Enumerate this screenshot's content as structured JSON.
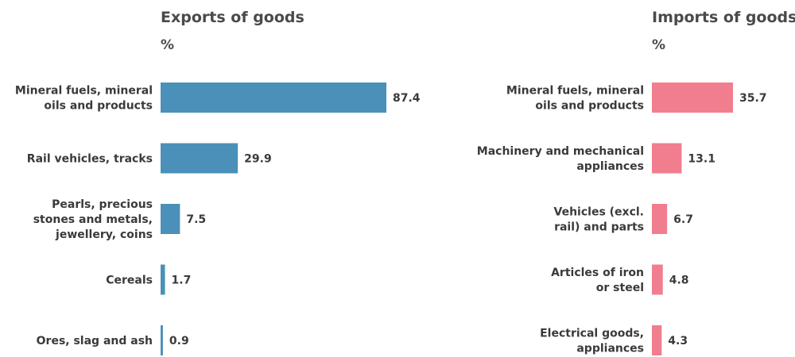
{
  "chart_data": [
    {
      "type": "bar",
      "orientation": "horizontal",
      "title": "Exports of goods",
      "unit": "%",
      "color": "#4a90b8",
      "categories": [
        [
          "Mineral fuels, mineral",
          "oils and products"
        ],
        [
          "Rail vehicles, tracks"
        ],
        [
          "Pearls, precious",
          "stones and metals,",
          "jewellery, coins"
        ],
        [
          "Cereals"
        ],
        [
          "Ores, slag and ash"
        ]
      ],
      "values": [
        87.4,
        29.9,
        7.5,
        1.7,
        0.9
      ],
      "labels": [
        "87.4",
        "29.9",
        "7.5",
        "1.7",
        "0.9"
      ]
    },
    {
      "type": "bar",
      "orientation": "horizontal",
      "title": "Imports of goods",
      "unit": "%",
      "color": "#f07e8e",
      "categories": [
        [
          "Mineral fuels, mineral",
          "oils and products"
        ],
        [
          "Machinery and mechanical",
          "appliances"
        ],
        [
          "Vehicles (excl.",
          "rail) and parts"
        ],
        [
          "Articles of iron",
          "or steel"
        ],
        [
          "Electrical goods,",
          "appliances"
        ]
      ],
      "values": [
        35.7,
        13.1,
        6.7,
        4.8,
        4.3
      ],
      "labels": [
        "35.7",
        "13.1",
        "6.7",
        "4.8",
        "4.3"
      ]
    }
  ]
}
